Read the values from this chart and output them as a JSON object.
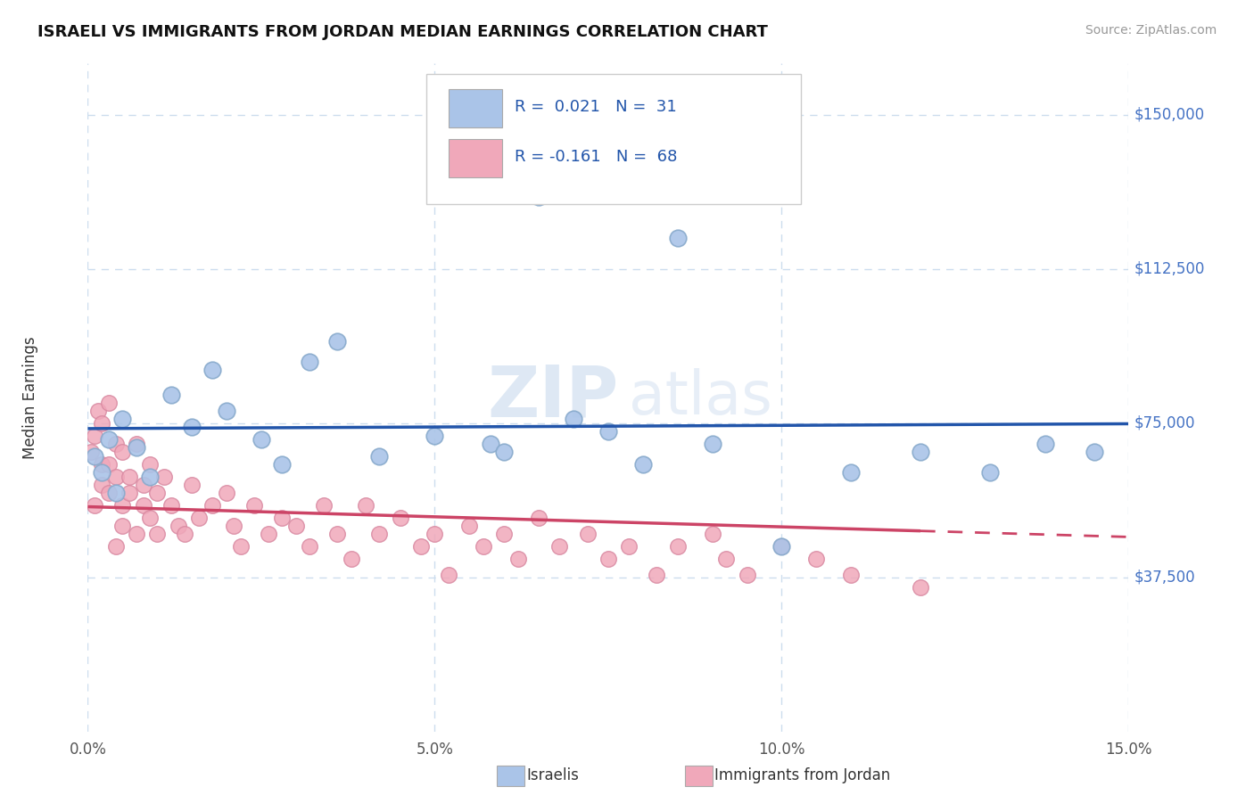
{
  "title": "ISRAELI VS IMMIGRANTS FROM JORDAN MEDIAN EARNINGS CORRELATION CHART",
  "source": "Source: ZipAtlas.com",
  "ylabel": "Median Earnings",
  "x_min": 0.0,
  "x_max": 0.15,
  "y_min": 0,
  "y_max": 162500,
  "yticks": [
    0,
    37500,
    75000,
    112500,
    150000
  ],
  "ytick_labels": [
    "",
    "$37,500",
    "$75,000",
    "$112,500",
    "$150,000"
  ],
  "xticks": [
    0.0,
    0.05,
    0.1,
    0.15
  ],
  "xtick_labels": [
    "0.0%",
    "5.0%",
    "10.0%",
    "15.0%"
  ],
  "watermark_zip": "ZIP",
  "watermark_atlas": "atlas",
  "legend_entries": [
    {
      "label_r": "R =  0.021",
      "label_n": "N =  31",
      "color": "#aac4e8"
    },
    {
      "label_r": "R = -0.161",
      "label_n": "N =  68",
      "color": "#f0a8ba"
    }
  ],
  "legend_bottom": [
    {
      "label": "Israelis",
      "color": "#aac4e8"
    },
    {
      "label": "Immigrants from Jordan",
      "color": "#f0a8ba"
    }
  ],
  "israeli_color": "#aac4e8",
  "jordan_color": "#f0a8ba",
  "israeli_edge_color": "#88aacc",
  "jordan_edge_color": "#d888a0",
  "israeli_line_color": "#2255aa",
  "jordan_line_color": "#cc4466",
  "israeli_R": 0.021,
  "jordan_R": -0.161,
  "background_color": "#ffffff",
  "grid_color": "#ccddee",
  "plot_bg_color": "#ffffff",
  "title_color": "#111111",
  "source_color": "#999999",
  "axis_label_color": "#4472C4",
  "ylabel_color": "#333333"
}
